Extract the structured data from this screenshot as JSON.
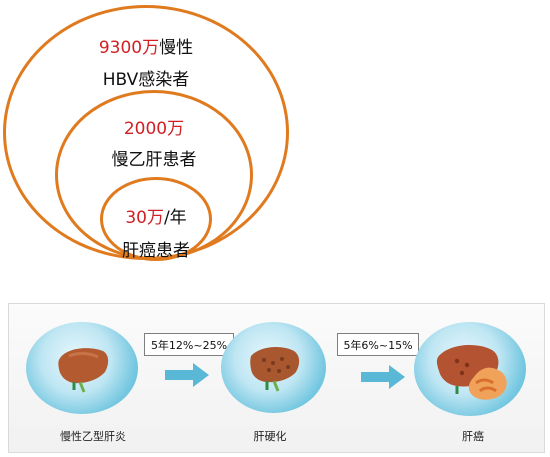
{
  "top_diagram": {
    "outer": {
      "number": "9300万",
      "suffix": "慢性",
      "line2": "HBV感染者"
    },
    "middle": {
      "number": "2000万",
      "line2": "慢乙肝患者"
    },
    "inner": {
      "number": "30万",
      "suffix": "/年",
      "line2": "肝癌患者"
    }
  },
  "progression": {
    "stages": [
      "慢性乙型肝炎",
      "肝硬化",
      "肝癌"
    ],
    "rates": [
      "5年12%~25%",
      "5年6%~15%"
    ]
  },
  "icons": {
    "liver": "liver-icon",
    "arrow": "arrow-right-icon",
    "cancer": "tumor-icon"
  },
  "colors": {
    "ring": "#e07a1f",
    "highlight": "#d11f24",
    "bubble": "#74c7e0"
  }
}
